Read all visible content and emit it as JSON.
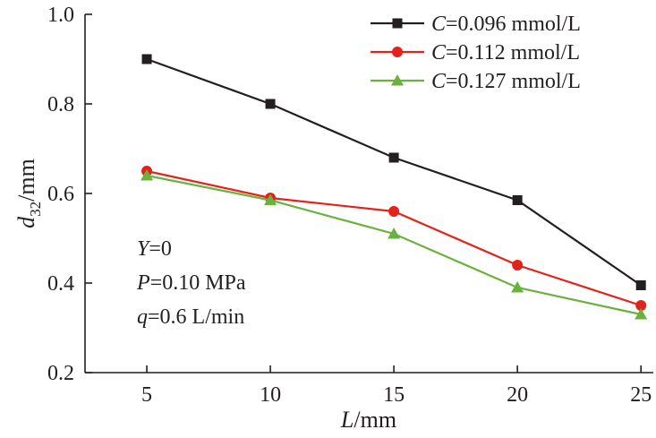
{
  "chart_data": {
    "type": "line",
    "x": [
      5,
      10,
      15,
      20,
      25
    ],
    "xticks": [
      5,
      10,
      15,
      20,
      25
    ],
    "yticks": [
      0.2,
      0.4,
      0.6,
      0.8,
      1.0
    ],
    "xlim": [
      2.5,
      25.5
    ],
    "ylim": [
      0.2,
      1.0
    ],
    "xlabel": {
      "main": "L",
      "rest": "/mm"
    },
    "ylabel": {
      "main": "d",
      "sub": "32",
      "rest": "/mm"
    },
    "grid": false,
    "legend_position": "top-right",
    "series": [
      {
        "name_var": "C",
        "name_rest": "=0.096 mmol/L",
        "color": "#231f20",
        "marker": "square",
        "values": [
          0.9,
          0.8,
          0.68,
          0.585,
          0.395
        ]
      },
      {
        "name_var": "C",
        "name_rest": "=0.112 mmol/L",
        "color": "#e2231a",
        "marker": "circle",
        "values": [
          0.65,
          0.59,
          0.56,
          0.44,
          0.35
        ]
      },
      {
        "name_var": "C",
        "name_rest": "=0.127 mmol/L",
        "color": "#6ab23e",
        "marker": "triangle",
        "values": [
          0.64,
          0.585,
          0.51,
          0.39,
          0.33
        ]
      }
    ],
    "annotations": [
      {
        "var": "Y",
        "rest": "=0"
      },
      {
        "var": "P",
        "rest": "=0.10 MPa"
      },
      {
        "var": "q",
        "rest": "=0.6 L/min"
      }
    ]
  }
}
